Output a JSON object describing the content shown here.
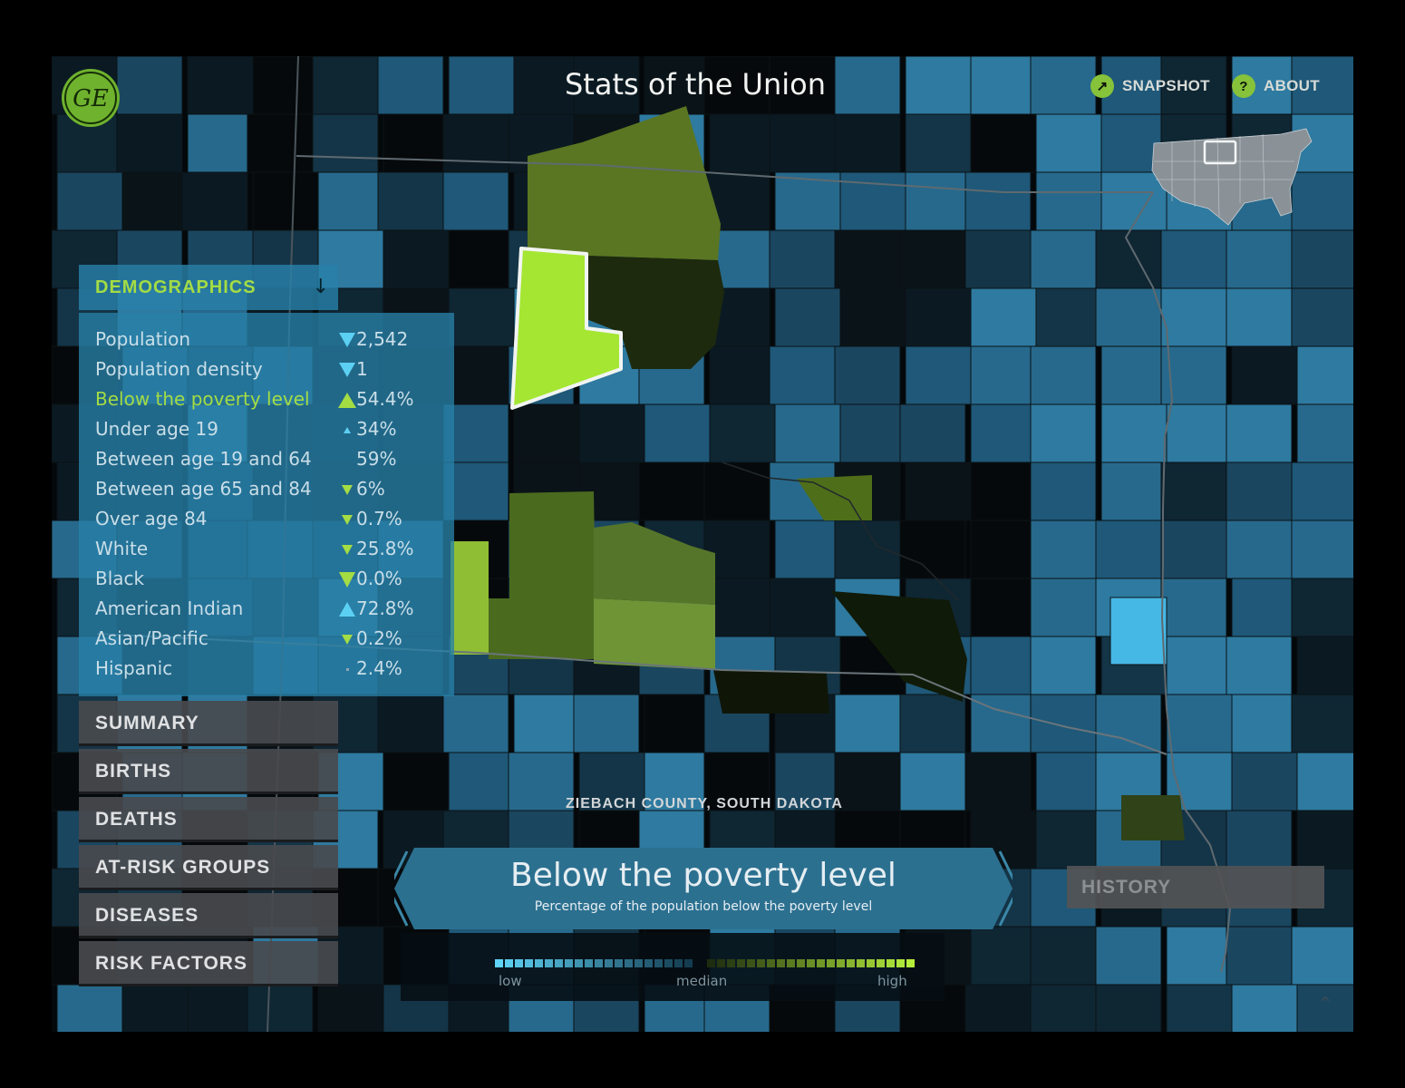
{
  "app": {
    "title": "Stats of the Union",
    "logo_text": "GE"
  },
  "toolbar": {
    "snapshot_label": "SNAPSHOT",
    "about_label": "ABOUT",
    "about_icon": "?"
  },
  "demographics": {
    "header": "DEMOGRAPHICS",
    "rows": [
      {
        "label": "Population",
        "value": "2,542",
        "trend": "down-blue"
      },
      {
        "label": "Population density",
        "value": "1",
        "trend": "down-blue"
      },
      {
        "label": "Below the poverty level",
        "value": "54.4%",
        "trend": "up-green",
        "highlight": true
      },
      {
        "label": "Under age 19",
        "value": "34%",
        "trend": "up-blue-small"
      },
      {
        "label": "Between age 19 and 64",
        "value": "59%",
        "trend": "none"
      },
      {
        "label": "Between age 65 and 84",
        "value": "6%",
        "trend": "down-green-small"
      },
      {
        "label": "Over age 84",
        "value": "0.7%",
        "trend": "down-green-small"
      },
      {
        "label": "White",
        "value": "25.8%",
        "trend": "down-green-small"
      },
      {
        "label": "Black",
        "value": "0.0%",
        "trend": "down-green"
      },
      {
        "label": "American Indian",
        "value": "72.8%",
        "trend": "up-blue"
      },
      {
        "label": "Asian/Pacific",
        "value": "0.2%",
        "trend": "down-green-small"
      },
      {
        "label": "Hispanic",
        "value": "2.4%",
        "trend": "dot"
      }
    ]
  },
  "categories": [
    "SUMMARY",
    "BIRTHS",
    "DEATHS",
    "AT-RISK GROUPS",
    "DISEASES",
    "RISK FACTORS"
  ],
  "map": {
    "selected_county": "ZIEBACH COUNTY, SOUTH DAKOTA"
  },
  "measure": {
    "title": "Below the poverty level",
    "subtitle": "Percentage of the population below the poverty level"
  },
  "legend": {
    "low_label": "low",
    "median_label": "median",
    "high_label": "high",
    "low_color": "#5fd4f6",
    "high_color": "#b4ee3c"
  },
  "history_label": "HISTORY",
  "colors": {
    "accent_green": "#a4dc44",
    "accent_blue": "#2a85ad",
    "panel_blue": "#2880a8"
  }
}
